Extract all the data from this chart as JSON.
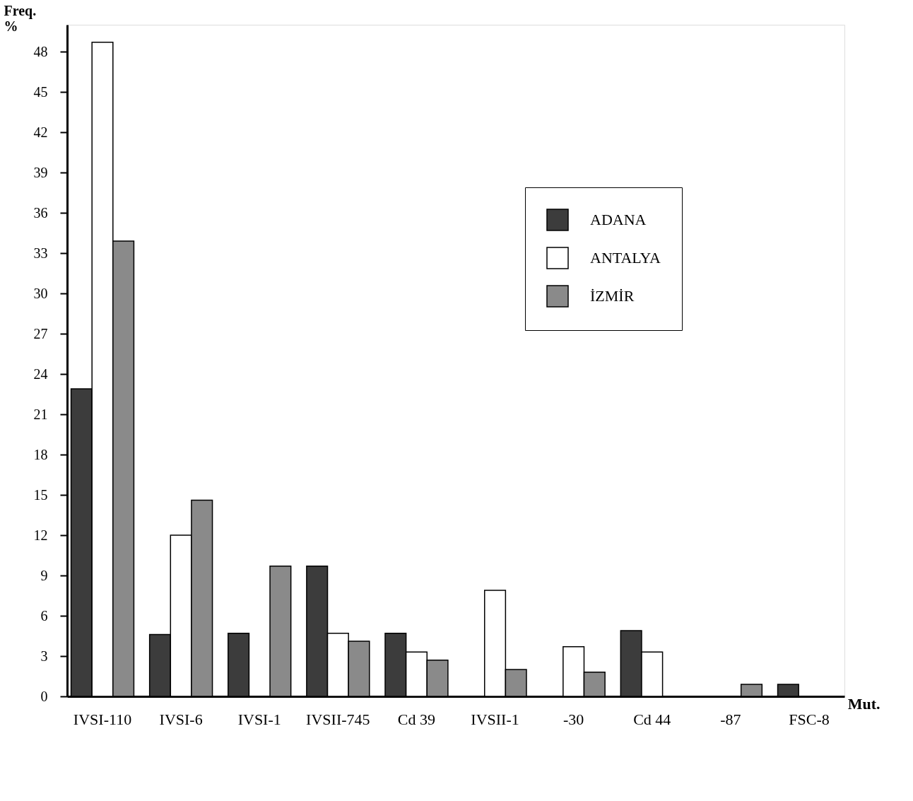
{
  "chart_data": {
    "type": "bar",
    "xlabel": "Mut.",
    "ylabel": "Freq.\n%",
    "categories": [
      "IVSI-110",
      "IVSI-6",
      "IVSI-1",
      "IVSII-745",
      "Cd 39",
      "IVSII-1",
      "-30",
      "Cd 44",
      "-87",
      "FSC-8"
    ],
    "series": [
      {
        "name": "ADANA",
        "color": "#3c3c3c",
        "values": [
          22.9,
          4.6,
          4.7,
          9.7,
          4.7,
          null,
          null,
          4.9,
          null,
          0.9
        ]
      },
      {
        "name": "ANTALYA",
        "color": "#ffffff",
        "values": [
          48.7,
          12.0,
          null,
          4.7,
          3.3,
          7.9,
          3.7,
          3.3,
          null,
          null
        ]
      },
      {
        "name": "İZMİR",
        "color": "#8a8a8a",
        "values": [
          33.9,
          14.6,
          9.7,
          4.1,
          2.7,
          2.0,
          1.8,
          null,
          0.9,
          null
        ]
      }
    ],
    "ylim": [
      0,
      50
    ],
    "yticks": [
      0,
      3,
      6,
      9,
      12,
      15,
      18,
      21,
      24,
      27,
      30,
      33,
      36,
      39,
      42,
      45,
      48
    ],
    "grid": false,
    "legend": "top right"
  }
}
